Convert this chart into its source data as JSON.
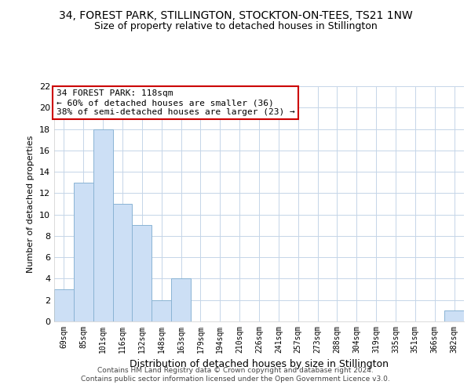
{
  "title": "34, FOREST PARK, STILLINGTON, STOCKTON-ON-TEES, TS21 1NW",
  "subtitle": "Size of property relative to detached houses in Stillington",
  "xlabel": "Distribution of detached houses by size in Stillington",
  "ylabel": "Number of detached properties",
  "categories": [
    "69sqm",
    "85sqm",
    "101sqm",
    "116sqm",
    "132sqm",
    "148sqm",
    "163sqm",
    "179sqm",
    "194sqm",
    "210sqm",
    "226sqm",
    "241sqm",
    "257sqm",
    "273sqm",
    "288sqm",
    "304sqm",
    "319sqm",
    "335sqm",
    "351sqm",
    "366sqm",
    "382sqm"
  ],
  "values": [
    3,
    13,
    18,
    11,
    9,
    2,
    4,
    0,
    0,
    0,
    0,
    0,
    0,
    0,
    0,
    0,
    0,
    0,
    0,
    0,
    1
  ],
  "bar_color": "#ccdff5",
  "bar_edge_color": "#8ab4d4",
  "ylim": [
    0,
    22
  ],
  "yticks": [
    0,
    2,
    4,
    6,
    8,
    10,
    12,
    14,
    16,
    18,
    20,
    22
  ],
  "annotation_title": "34 FOREST PARK: 118sqm",
  "annotation_line1": "← 60% of detached houses are smaller (36)",
  "annotation_line2": "38% of semi-detached houses are larger (23) →",
  "annotation_box_color": "#ffffff",
  "annotation_box_edge": "#cc0000",
  "footer_line1": "Contains HM Land Registry data © Crown copyright and database right 2024.",
  "footer_line2": "Contains public sector information licensed under the Open Government Licence v3.0.",
  "background_color": "#ffffff",
  "grid_color": "#c5d5e8"
}
